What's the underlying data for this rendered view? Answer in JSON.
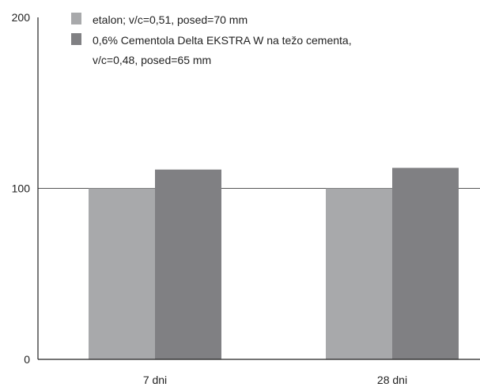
{
  "chart_data": {
    "type": "bar",
    "categories": [
      "7 dni",
      "28 dni"
    ],
    "series": [
      {
        "name_lines": [
          "etalon; v/c=0,51, posed=70 mm"
        ],
        "color": "#a8a9ab",
        "values": [
          100,
          100
        ]
      },
      {
        "name_lines": [
          "0,6% Cementola Delta EKSTRA W na težo cementa,",
          "v/c=0,48, posed=65 mm"
        ],
        "color": "#808083",
        "values": [
          111,
          112
        ]
      }
    ],
    "ylim": [
      0,
      200
    ],
    "yticks": [
      "0",
      "100",
      "200"
    ],
    "grid": "horizontal line at 100",
    "legend": "top-left"
  }
}
